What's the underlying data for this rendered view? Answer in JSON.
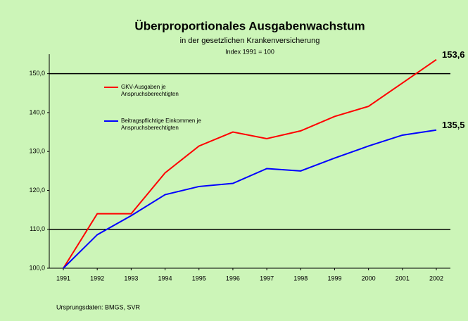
{
  "chart_data": {
    "type": "line",
    "title": "Überproportionales Ausgabenwachstum",
    "subtitle": "in der gesetzlichen Krankenversicherung",
    "note": "Index 1991 = 100",
    "source": "Ursprungsdaten: BMGS, SVR",
    "categories": [
      "1991",
      "1992",
      "1993",
      "1994",
      "1995",
      "1996",
      "1997",
      "1998",
      "1999",
      "2000",
      "2001",
      "2002"
    ],
    "series": [
      {
        "name": "GKV-Ausgaben je Anspruchsberechtigten",
        "color": "#ff0000",
        "values": [
          100,
          114,
          114,
          124.5,
          131.4,
          135,
          133.3,
          135.3,
          139,
          141.6,
          147.6,
          153.6
        ],
        "value_labels": [
          null,
          null,
          null,
          null,
          null,
          null,
          null,
          null,
          null,
          null,
          null,
          "153,6"
        ]
      },
      {
        "name": "Beitragspflichtige Einkommen je Anspruchsberechtigten",
        "color": "#0000ff",
        "values": [
          100,
          108.6,
          113.5,
          118.9,
          121,
          121.8,
          125.6,
          125,
          128.3,
          131.4,
          134.2,
          135.5
        ],
        "value_labels": [
          null,
          null,
          null,
          null,
          null,
          null,
          null,
          null,
          null,
          null,
          null,
          "135,5"
        ]
      }
    ],
    "ylim": [
      100,
      155
    ],
    "yticks": [
      {
        "value": 100,
        "label": "100,0"
      },
      {
        "value": 110,
        "label": "110,0"
      },
      {
        "value": 120,
        "label": "120,0"
      },
      {
        "value": 130,
        "label": "130,0"
      },
      {
        "value": 140,
        "label": "140,0"
      },
      {
        "value": 150,
        "label": "150,0"
      }
    ],
    "reference_lines": [
      110,
      150
    ]
  }
}
